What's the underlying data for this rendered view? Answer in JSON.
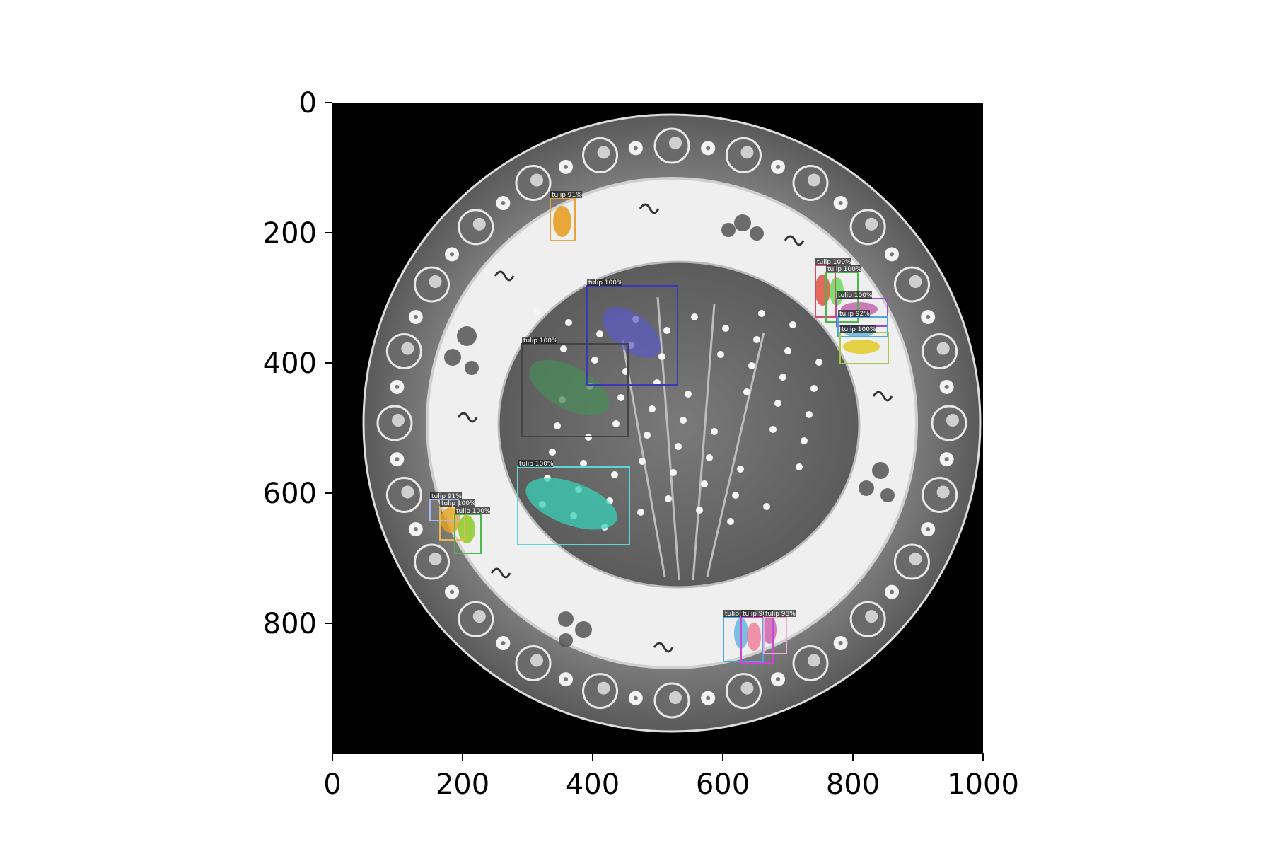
{
  "axes": {
    "x_ticks": [
      "0",
      "200",
      "400",
      "600",
      "800",
      "1000"
    ],
    "y_ticks": [
      "0",
      "200",
      "400",
      "600",
      "800"
    ]
  },
  "detections": [
    {
      "label": "tulip 91%",
      "color": "#e8a33a"
    },
    {
      "label": "tulip 100%",
      "color": "#3a3ab8"
    },
    {
      "label": "tulip 100%",
      "color": "#444444"
    },
    {
      "label": "tulip 100%",
      "color": "#5ed6d6"
    },
    {
      "label": "tulip 100%",
      "color": "#d64a6a"
    },
    {
      "label": "tulip 100%",
      "color": "#4ab84a"
    },
    {
      "label": "tulip 100%",
      "color": "#a04ad0"
    },
    {
      "label": "tulip 92%",
      "color": "#4aa8e0"
    },
    {
      "label": "tulip 100%",
      "color": "#a8c84a"
    },
    {
      "label": "tulip 100%",
      "color": "#e8b84a"
    },
    {
      "label": "tulip 91%",
      "color": "#a8b8f0"
    },
    {
      "label": "tulip 100%",
      "color": "#4ab84a"
    },
    {
      "label": "tulip 98%",
      "color": "#4aa8e0"
    },
    {
      "label": "tulip 90%",
      "color": "#c84ad0"
    },
    {
      "label": "tulip 98%",
      "color": "#f0a8d0"
    }
  ]
}
